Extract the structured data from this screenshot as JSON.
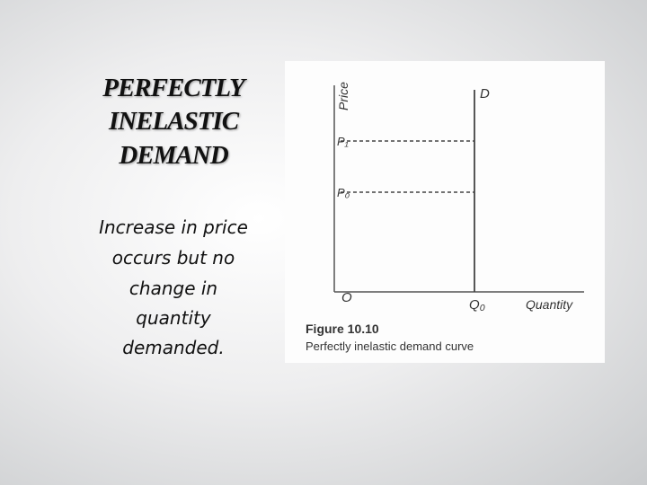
{
  "slide": {
    "title": [
      "PERFECTLY",
      "INELASTIC",
      "DEMAND"
    ],
    "body": [
      "Increase in price",
      "occurs  but no",
      "change  in",
      "quantity",
      "demanded."
    ],
    "figure": {
      "y_axis_label": "Price",
      "x_axis_label": "Quantity",
      "curve_label": "D",
      "price_1": "P₁",
      "price_0": "P₀",
      "origin": "O",
      "quantity_0": "Q₀",
      "caption_number": "Figure  10.10",
      "caption_text": "Perfectly inelastic demand curve"
    }
  }
}
